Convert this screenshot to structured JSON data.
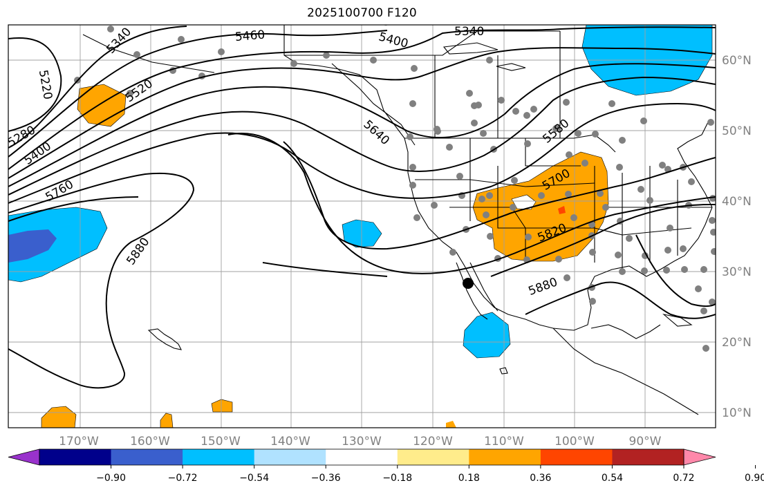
{
  "title": "2025100700 F120",
  "lon_labels": [
    "170°W",
    "160°W",
    "150°W",
    "140°W",
    "130°W",
    "120°W",
    "110°W",
    "100°W",
    "90°W"
  ],
  "lat_labels": [
    "60°N",
    "50°N",
    "40°N",
    "30°N",
    "20°N",
    "10°N"
  ],
  "contour_labels": [
    "5340",
    "5460",
    "5400",
    "5340",
    "5520",
    "5220",
    "5280",
    "5400",
    "5760",
    "5880",
    "5640",
    "5580",
    "5700",
    "5820",
    "5880"
  ],
  "colorbar": {
    "colors": [
      "#9932CC",
      "#00008B",
      "#3A5FCD",
      "#00BFFF",
      "#B0E2FF",
      "#FFFFFF",
      "#FFEC8B",
      "#FFA500",
      "#FF4500",
      "#B22222",
      "#FF88AA"
    ],
    "tick_labels": [
      "−0.90",
      "−0.72",
      "−0.54",
      "−0.36",
      "−0.18",
      "0.18",
      "0.36",
      "0.54",
      "0.72",
      "0.90"
    ]
  },
  "colors": {
    "grid": "#a0a0a0",
    "contour": "#000000",
    "station": "#808080"
  }
}
